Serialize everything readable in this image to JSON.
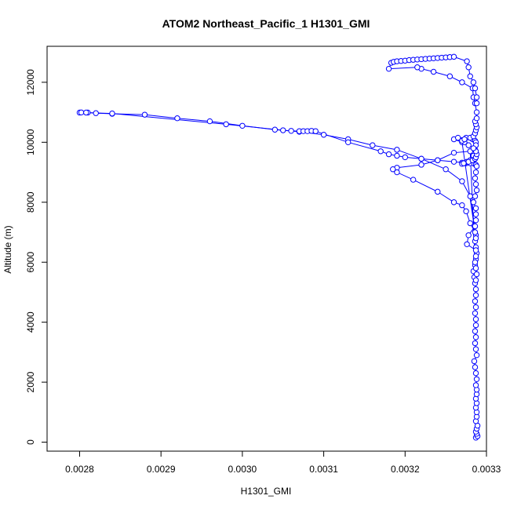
{
  "chart_data": {
    "type": "scatter",
    "title": "ATOM2 Northeast_Pacific_1 H1301_GMI",
    "xlabel": "H1301_GMI",
    "ylabel": "Altitude (m)",
    "xlim": [
      0.00276,
      0.0033
    ],
    "ylim": [
      -300,
      13200
    ],
    "x_ticks": [
      0.0028,
      0.0029,
      0.003,
      0.0031,
      0.0032,
      0.0033
    ],
    "x_tick_labels": [
      "0.0028",
      "0.0029",
      "0.0030",
      "0.0031",
      "0.0032",
      "0.0033"
    ],
    "y_ticks": [
      0,
      2000,
      4000,
      6000,
      8000,
      10000,
      12000
    ],
    "y_tick_labels": [
      "0",
      "2000",
      "4000",
      "6000",
      "8000",
      "10000",
      "12000"
    ],
    "grid": false,
    "legend": "none",
    "marker": "open-circle",
    "line": true,
    "color": "#0000ff",
    "series": [
      {
        "x": [
          0.003287,
          0.003289,
          0.003288,
          0.003287,
          0.003288,
          0.003289,
          0.003287,
          0.003288,
          0.003288,
          0.003287,
          0.003288,
          0.003287,
          0.003288,
          0.003288,
          0.003287,
          0.003288,
          0.003287,
          0.003286,
          0.003285,
          0.003288,
          0.003287,
          0.003286,
          0.003287,
          0.003286,
          0.003287,
          0.003287,
          0.003286,
          0.003287,
          0.003286,
          0.003287,
          0.003287,
          0.003286,
          0.003285,
          0.003284,
          0.003286,
          0.003287,
          0.003288,
          0.003287,
          0.003286,
          0.003287,
          0.00328,
          0.00327,
          0.00325,
          0.00322,
          0.00319,
          0.00316,
          0.00313,
          0.0031,
          0.00307,
          0.00304,
          0.003,
          0.00296,
          0.00292,
          0.00288,
          0.00284,
          0.00282,
          0.00281,
          0.0028,
          0.002802,
          0.002808,
          0.00284,
          0.00298,
          0.00305,
          0.00306,
          0.00307,
          0.003075,
          0.00308,
          0.003085,
          0.00309,
          0.00313,
          0.00317,
          0.00318,
          0.00319,
          0.0032,
          0.00322,
          0.00324,
          0.00326,
          0.00327,
          0.003275,
          0.00328,
          0.003285,
          0.003287,
          0.003288,
          0.003287,
          0.003286,
          0.003287,
          0.003288,
          0.003286,
          0.003284,
          0.003287,
          0.003287,
          0.003287,
          0.003286,
          0.003278,
          0.003276,
          0.003287,
          0.003287,
          0.003286,
          0.003287,
          0.003288,
          0.003287,
          0.00328,
          0.00326,
          0.00324,
          0.00322,
          0.00319,
          0.003185,
          0.00319,
          0.00321,
          0.00324,
          0.00326,
          0.00327,
          0.003275,
          0.00328,
          0.003286,
          0.003287,
          0.00327,
          0.00326,
          0.003265,
          0.003275,
          0.003283,
          0.003286,
          0.003287,
          0.003287,
          0.003286,
          0.003284,
          0.00328,
          0.003276,
          0.003273,
          0.00327,
          0.003272,
          0.003278,
          0.003283,
          0.003286,
          0.003287,
          0.003288,
          0.003287,
          0.003284,
          0.003278,
          0.003273,
          0.00327,
          0.003273,
          0.00328,
          0.003284,
          0.003286,
          0.003287,
          0.003288,
          0.003287,
          0.003286,
          0.003288,
          0.003288,
          0.003286,
          0.003284,
          0.003283,
          0.00327,
          0.003255,
          0.003235,
          0.00322,
          0.003215,
          0.00318,
          0.003183,
          0.003186,
          0.00319,
          0.003195,
          0.0032,
          0.003205,
          0.00321,
          0.003215,
          0.00322,
          0.003225,
          0.00323,
          0.003235,
          0.00324,
          0.003245,
          0.00325,
          0.003255,
          0.00326,
          0.003276,
          0.003278,
          0.00328,
          0.003284,
          0.003286,
          0.003288,
          0.003288
        ],
        "y": [
          150,
          200,
          280,
          350,
          450,
          550,
          700,
          850,
          1000,
          1150,
          1300,
          1450,
          1600,
          1750,
          1900,
          2100,
          2300,
          2500,
          2700,
          2900,
          3100,
          3300,
          3500,
          3700,
          3900,
          4100,
          4300,
          4500,
          4700,
          4900,
          5100,
          5300,
          5500,
          5700,
          5900,
          6100,
          6300,
          6500,
          6700,
          6900,
          8200,
          8700,
          9100,
          9450,
          9750,
          9900,
          10100,
          10250,
          10350,
          10420,
          10550,
          10700,
          10800,
          10920,
          10950,
          10970,
          10990,
          10990,
          10995,
          10990,
          10960,
          10600,
          10400,
          10380,
          10370,
          10370,
          10370,
          10380,
          10370,
          10000,
          9700,
          9600,
          9550,
          9500,
          9450,
          9400,
          9350,
          9320,
          9300,
          9300,
          9280,
          9250,
          9200,
          9000,
          8800,
          8600,
          8400,
          8200,
          8000,
          7800,
          7600,
          7400,
          7200,
          6900,
          6600,
          6400,
          6200,
          6000,
          5800,
          5600,
          5400,
          9700,
          9650,
          9400,
          9250,
          9150,
          9100,
          9000,
          8750,
          8350,
          8000,
          7900,
          7700,
          7300,
          7000,
          6800,
          10000,
          10100,
          10150,
          10150,
          10100,
          10050,
          10000,
          9900,
          9750,
          9550,
          9400,
          9350,
          9300,
          9280,
          9300,
          9350,
          9400,
          9450,
          9500,
          9600,
          9700,
          9800,
          9900,
          10000,
          10050,
          10100,
          10150,
          10200,
          10300,
          10400,
          10500,
          10600,
          10700,
          10800,
          11000,
          11300,
          11500,
          11800,
          12000,
          12200,
          12350,
          12450,
          12500,
          12450,
          12650,
          12680,
          12700,
          12710,
          12720,
          12740,
          12750,
          12760,
          12770,
          12780,
          12790,
          12800,
          12810,
          12820,
          12830,
          12840,
          12850,
          12700,
          12500,
          12200,
          12000,
          11800,
          11500,
          11300
        ]
      }
    ]
  }
}
